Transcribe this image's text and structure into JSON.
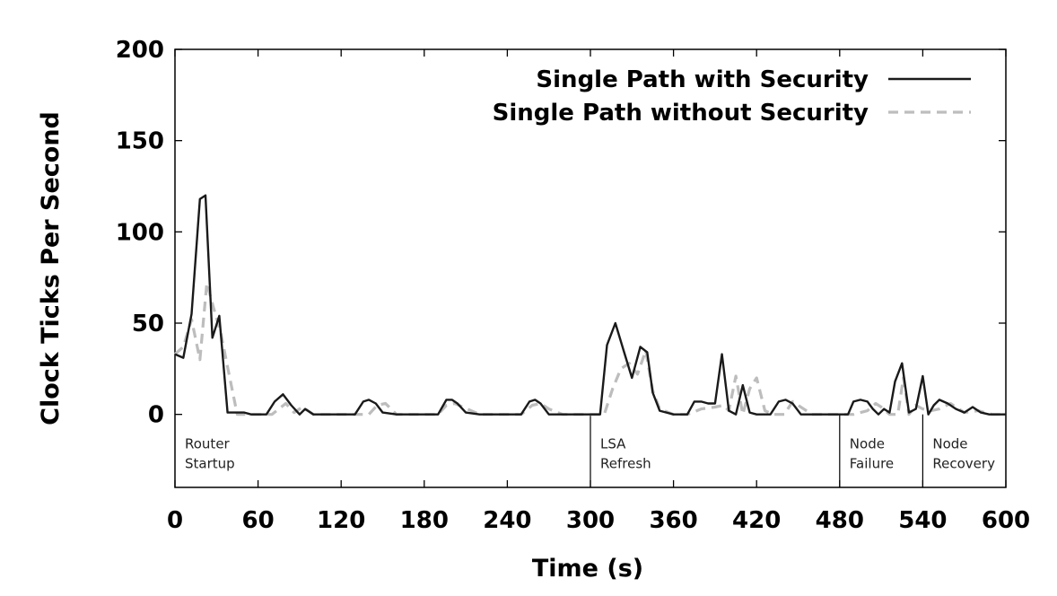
{
  "chart_data": {
    "type": "line",
    "xlabel": "Time (s)",
    "ylabel": "Clock Ticks Per Second",
    "xlim": [
      0,
      600
    ],
    "ylim": [
      -40,
      200
    ],
    "xticks": [
      0,
      60,
      120,
      180,
      240,
      300,
      360,
      420,
      480,
      540,
      600
    ],
    "yticks": [
      0,
      50,
      100,
      150,
      200
    ],
    "grid": false,
    "legend_position": "top-right",
    "series": [
      {
        "name": "Single Path with Security",
        "color": "#1a1a1a",
        "style": "solid",
        "x": [
          0,
          6,
          12,
          18,
          22,
          27,
          32,
          38,
          45,
          50,
          55,
          60,
          66,
          72,
          78,
          84,
          90,
          94,
          100,
          110,
          120,
          130,
          136,
          140,
          145,
          150,
          160,
          170,
          180,
          190,
          196,
          200,
          204,
          210,
          220,
          230,
          240,
          250,
          256,
          260,
          264,
          270,
          280,
          290,
          300,
          307,
          312,
          318,
          324,
          330,
          336,
          341,
          345,
          350,
          360,
          370,
          375,
          380,
          385,
          390,
          395,
          400,
          405,
          410,
          415,
          420,
          425,
          430,
          436,
          441,
          446,
          452,
          460,
          470,
          480,
          486,
          490,
          495,
          500,
          504,
          508,
          512,
          516,
          520,
          525,
          530,
          535,
          540,
          544,
          548,
          552,
          558,
          564,
          570,
          576,
          582,
          588,
          594,
          600
        ],
        "y": [
          33,
          31,
          55,
          118,
          120,
          42,
          54,
          1,
          1,
          1,
          0,
          0,
          0,
          7,
          11,
          5,
          0,
          3,
          0,
          0,
          0,
          0,
          7,
          8,
          6,
          1,
          0,
          0,
          0,
          0,
          8,
          8,
          6,
          1,
          0,
          0,
          0,
          0,
          7,
          8,
          6,
          0,
          0,
          0,
          0,
          0,
          38,
          50,
          35,
          20,
          37,
          34,
          12,
          2,
          0,
          0,
          7,
          7,
          6,
          6,
          33,
          2,
          0,
          16,
          1,
          0,
          0,
          0,
          7,
          8,
          6,
          0,
          0,
          0,
          0,
          0,
          7,
          8,
          7,
          3,
          0,
          3,
          1,
          18,
          28,
          1,
          3,
          21,
          0,
          5,
          8,
          6,
          3,
          1,
          4,
          1,
          0,
          0,
          0
        ]
      },
      {
        "name": "Single Path without Security",
        "color": "#bdbdbd",
        "style": "dashed",
        "x": [
          0,
          6,
          12,
          18,
          23,
          28,
          33,
          38,
          45,
          50,
          55,
          60,
          70,
          80,
          86,
          92,
          100,
          110,
          120,
          130,
          140,
          146,
          152,
          160,
          170,
          180,
          190,
          196,
          202,
          208,
          220,
          230,
          240,
          250,
          258,
          264,
          270,
          280,
          290,
          300,
          310,
          316,
          322,
          328,
          334,
          340,
          345,
          350,
          360,
          370,
          380,
          390,
          396,
          400,
          405,
          410,
          415,
          420,
          426,
          432,
          440,
          446,
          450,
          460,
          470,
          480,
          490,
          500,
          506,
          510,
          516,
          522,
          526,
          530,
          535,
          540,
          546,
          552,
          560,
          570,
          580,
          590,
          600
        ],
        "y": [
          33,
          37,
          52,
          30,
          72,
          58,
          45,
          26,
          0,
          0,
          0,
          0,
          0,
          6,
          1,
          4,
          0,
          0,
          0,
          0,
          0,
          5,
          6,
          0,
          0,
          0,
          0,
          5,
          6,
          4,
          0,
          0,
          0,
          0,
          5,
          6,
          3,
          0,
          0,
          0,
          0,
          14,
          25,
          28,
          22,
          35,
          13,
          3,
          0,
          0,
          3,
          4,
          5,
          2,
          21,
          0,
          14,
          20,
          2,
          0,
          0,
          7,
          5,
          0,
          0,
          0,
          0,
          2,
          6,
          4,
          0,
          0,
          20,
          0,
          5,
          3,
          2,
          3,
          6,
          1,
          2,
          0,
          0
        ]
      }
    ],
    "annotations": [
      {
        "x": 0,
        "lines": [
          "Router",
          "Startup"
        ]
      },
      {
        "x": 300,
        "lines": [
          "LSA",
          "Refresh"
        ]
      },
      {
        "x": 480,
        "lines": [
          "Node",
          "Failure"
        ]
      },
      {
        "x": 540,
        "lines": [
          "Node",
          "Recovery"
        ]
      }
    ]
  }
}
